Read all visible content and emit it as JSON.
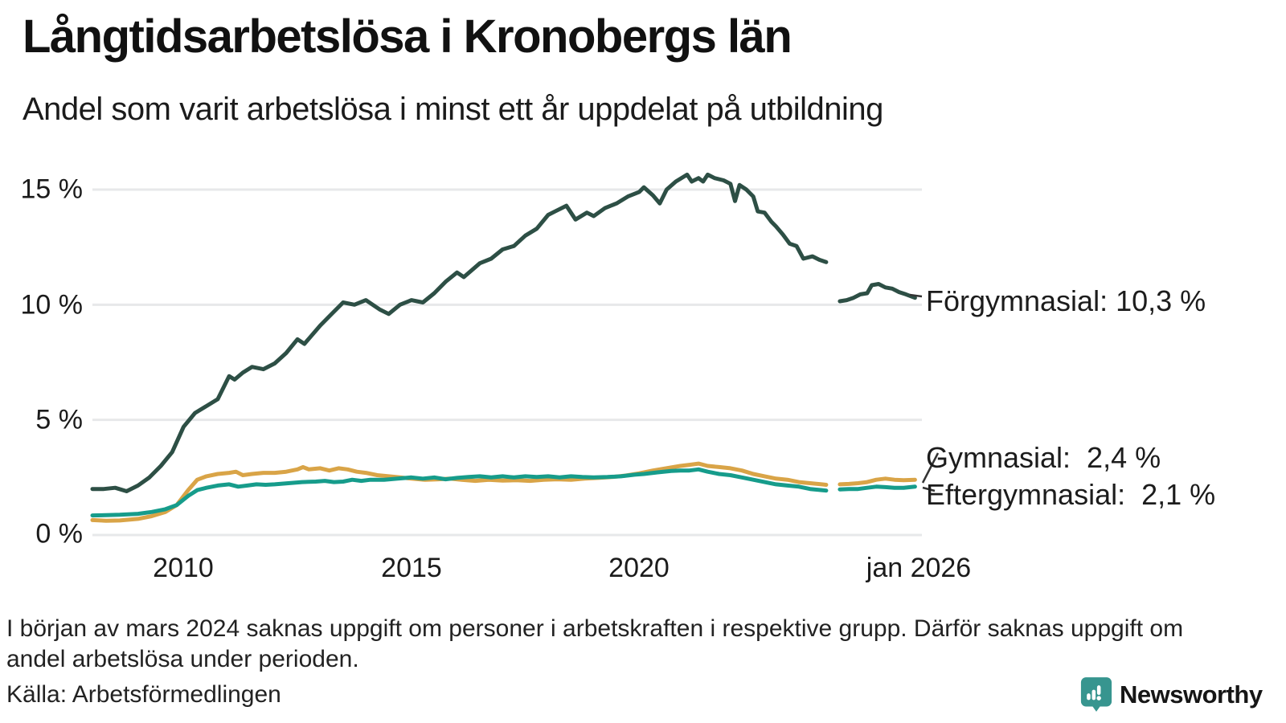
{
  "header": {
    "title": "Långtidsarbetslösa i Kronobergs län",
    "subtitle": "Andel som varit arbetslösa i minst ett år uppdelat på utbildning"
  },
  "chart_data": {
    "type": "line",
    "title": "Långtidsarbetslösa i Kronobergs län",
    "subtitle": "Andel som varit arbetslösa i minst ett år uppdelat på utbildning",
    "unit": "%",
    "xlim": [
      2008,
      2026.2
    ],
    "ylim": [
      0,
      16.2
    ],
    "grid": "horizontal",
    "legend_position": "right-end-labels",
    "colors": {
      "grid": "#e7e8ea",
      "forgymnasial": "#2d4f45",
      "gymnasial": "#d9a447",
      "eftergymnasial": "#169c8b"
    },
    "y_ticks": [
      {
        "v": 0,
        "label": "0 %"
      },
      {
        "v": 5,
        "label": "5 %"
      },
      {
        "v": 10,
        "label": "10 %"
      },
      {
        "v": 15,
        "label": "15 %"
      }
    ],
    "x_ticks": [
      {
        "t": 2010,
        "label": "2010"
      },
      {
        "t": 2015,
        "label": "2015"
      },
      {
        "t": 2020,
        "label": "2020"
      },
      {
        "t": 2026.05,
        "label": "jan 2026"
      }
    ],
    "series": [
      {
        "key": "forgymnasial",
        "name": "Förgymnasial",
        "color": "#2d4f45",
        "end_label": "Förgymnasial: 10,3 %",
        "end_value": "10,3 %",
        "segments": [
          [
            [
              2008,
              2
            ],
            [
              2008.25,
              2
            ],
            [
              2008.5,
              2.05
            ],
            [
              2008.75,
              1.9
            ],
            [
              2009,
              2.15
            ],
            [
              2009.25,
              2.5
            ],
            [
              2009.5,
              3
            ],
            [
              2009.75,
              3.6
            ],
            [
              2010,
              4.7
            ],
            [
              2010.25,
              5.3
            ],
            [
              2010.5,
              5.6
            ],
            [
              2010.75,
              5.9
            ],
            [
              2011,
              6.9
            ],
            [
              2011.12,
              6.75
            ],
            [
              2011.3,
              7.05
            ],
            [
              2011.5,
              7.3
            ],
            [
              2011.75,
              7.2
            ],
            [
              2012,
              7.45
            ],
            [
              2012.25,
              7.9
            ],
            [
              2012.5,
              8.5
            ],
            [
              2012.65,
              8.3
            ],
            [
              2013,
              9.1
            ],
            [
              2013.25,
              9.6
            ],
            [
              2013.5,
              10.1
            ],
            [
              2013.75,
              10
            ],
            [
              2014,
              10.2
            ],
            [
              2014.3,
              9.8
            ],
            [
              2014.5,
              9.6
            ],
            [
              2014.75,
              10
            ],
            [
              2015,
              10.2
            ],
            [
              2015.25,
              10.1
            ],
            [
              2015.5,
              10.5
            ],
            [
              2015.75,
              11
            ],
            [
              2016,
              11.4
            ],
            [
              2016.15,
              11.2
            ],
            [
              2016.5,
              11.8
            ],
            [
              2016.75,
              12
            ],
            [
              2017,
              12.4
            ],
            [
              2017.25,
              12.55
            ],
            [
              2017.5,
              13
            ],
            [
              2017.75,
              13.3
            ],
            [
              2018,
              13.9
            ],
            [
              2018.15,
              14.05
            ],
            [
              2018.4,
              14.3
            ],
            [
              2018.6,
              13.7
            ],
            [
              2018.85,
              14
            ],
            [
              2019,
              13.85
            ],
            [
              2019.25,
              14.2
            ],
            [
              2019.5,
              14.4
            ],
            [
              2019.75,
              14.7
            ],
            [
              2020,
              14.9
            ],
            [
              2020.1,
              15.1
            ],
            [
              2020.3,
              14.75
            ],
            [
              2020.45,
              14.4
            ],
            [
              2020.6,
              15
            ],
            [
              2020.8,
              15.35
            ],
            [
              2021.05,
              15.65
            ],
            [
              2021.15,
              15.35
            ],
            [
              2021.3,
              15.5
            ],
            [
              2021.4,
              15.35
            ],
            [
              2021.5,
              15.65
            ],
            [
              2021.65,
              15.5
            ],
            [
              2021.85,
              15.4
            ],
            [
              2022,
              15.25
            ],
            [
              2022.1,
              14.5
            ],
            [
              2022.2,
              15.2
            ],
            [
              2022.35,
              15
            ],
            [
              2022.5,
              14.7
            ],
            [
              2022.6,
              14.05
            ],
            [
              2022.75,
              14
            ],
            [
              2022.9,
              13.6
            ],
            [
              2023,
              13.4
            ],
            [
              2023.15,
              13.05
            ],
            [
              2023.3,
              12.65
            ],
            [
              2023.45,
              12.55
            ],
            [
              2023.6,
              12
            ],
            [
              2023.8,
              12.1
            ],
            [
              2023.95,
              11.95
            ],
            [
              2024.1,
              11.85
            ]
          ],
          [
            [
              2024.4,
              10.15
            ],
            [
              2024.55,
              10.2
            ],
            [
              2024.7,
              10.3
            ],
            [
              2024.85,
              10.45
            ],
            [
              2025,
              10.5
            ],
            [
              2025.1,
              10.85
            ],
            [
              2025.25,
              10.9
            ],
            [
              2025.4,
              10.75
            ],
            [
              2025.55,
              10.7
            ],
            [
              2025.7,
              10.55
            ],
            [
              2025.85,
              10.45
            ],
            [
              2026.05,
              10.3
            ]
          ]
        ]
      },
      {
        "key": "gymnasial",
        "name": "Gymnasial",
        "color": "#d9a447",
        "end_label": "Gymnasial:  2,4 %",
        "end_value": "2,4 %",
        "segments": [
          [
            [
              2008,
              0.65
            ],
            [
              2008.3,
              0.62
            ],
            [
              2008.6,
              0.63
            ],
            [
              2009,
              0.7
            ],
            [
              2009.3,
              0.82
            ],
            [
              2009.6,
              1
            ],
            [
              2009.85,
              1.3
            ],
            [
              2010.1,
              1.95
            ],
            [
              2010.3,
              2.4
            ],
            [
              2010.5,
              2.55
            ],
            [
              2010.75,
              2.65
            ],
            [
              2011,
              2.7
            ],
            [
              2011.15,
              2.75
            ],
            [
              2011.3,
              2.6
            ],
            [
              2011.5,
              2.65
            ],
            [
              2011.75,
              2.7
            ],
            [
              2012,
              2.7
            ],
            [
              2012.25,
              2.75
            ],
            [
              2012.5,
              2.85
            ],
            [
              2012.62,
              2.95
            ],
            [
              2012.75,
              2.85
            ],
            [
              2013,
              2.9
            ],
            [
              2013.2,
              2.8
            ],
            [
              2013.4,
              2.9
            ],
            [
              2013.6,
              2.85
            ],
            [
              2013.8,
              2.75
            ],
            [
              2014,
              2.7
            ],
            [
              2014.25,
              2.6
            ],
            [
              2014.5,
              2.55
            ],
            [
              2014.75,
              2.5
            ],
            [
              2015,
              2.45
            ],
            [
              2015.3,
              2.4
            ],
            [
              2015.6,
              2.42
            ],
            [
              2015.85,
              2.45
            ],
            [
              2016.1,
              2.4
            ],
            [
              2016.4,
              2.35
            ],
            [
              2016.7,
              2.4
            ],
            [
              2017,
              2.36
            ],
            [
              2017.3,
              2.38
            ],
            [
              2017.6,
              2.35
            ],
            [
              2017.9,
              2.4
            ],
            [
              2018.2,
              2.42
            ],
            [
              2018.5,
              2.4
            ],
            [
              2018.8,
              2.45
            ],
            [
              2019.1,
              2.48
            ],
            [
              2019.4,
              2.52
            ],
            [
              2019.7,
              2.58
            ],
            [
              2020,
              2.68
            ],
            [
              2020.3,
              2.8
            ],
            [
              2020.6,
              2.9
            ],
            [
              2020.9,
              3
            ],
            [
              2021.1,
              3.05
            ],
            [
              2021.3,
              3.1
            ],
            [
              2021.5,
              3
            ],
            [
              2021.75,
              2.95
            ],
            [
              2022,
              2.9
            ],
            [
              2022.25,
              2.8
            ],
            [
              2022.5,
              2.65
            ],
            [
              2022.75,
              2.55
            ],
            [
              2023,
              2.45
            ],
            [
              2023.25,
              2.4
            ],
            [
              2023.5,
              2.3
            ],
            [
              2023.75,
              2.25
            ],
            [
              2024,
              2.2
            ],
            [
              2024.1,
              2.18
            ]
          ],
          [
            [
              2024.4,
              2.2
            ],
            [
              2024.6,
              2.22
            ],
            [
              2024.8,
              2.25
            ],
            [
              2025,
              2.3
            ],
            [
              2025.2,
              2.4
            ],
            [
              2025.4,
              2.45
            ],
            [
              2025.6,
              2.4
            ],
            [
              2025.8,
              2.38
            ],
            [
              2026.05,
              2.4
            ]
          ]
        ]
      },
      {
        "key": "eftergymnasial",
        "name": "Eftergymnasial",
        "color": "#169c8b",
        "end_label": "Eftergymnasial:  2,1 %",
        "end_value": "2,1 %",
        "segments": [
          [
            [
              2008,
              0.85
            ],
            [
              2008.3,
              0.86
            ],
            [
              2008.6,
              0.88
            ],
            [
              2009,
              0.92
            ],
            [
              2009.3,
              1
            ],
            [
              2009.6,
              1.12
            ],
            [
              2009.85,
              1.3
            ],
            [
              2010.1,
              1.7
            ],
            [
              2010.3,
              1.95
            ],
            [
              2010.5,
              2.05
            ],
            [
              2010.75,
              2.15
            ],
            [
              2011,
              2.2
            ],
            [
              2011.2,
              2.1
            ],
            [
              2011.4,
              2.15
            ],
            [
              2011.6,
              2.2
            ],
            [
              2011.8,
              2.18
            ],
            [
              2012,
              2.2
            ],
            [
              2012.3,
              2.25
            ],
            [
              2012.6,
              2.3
            ],
            [
              2012.9,
              2.32
            ],
            [
              2013.1,
              2.35
            ],
            [
              2013.3,
              2.3
            ],
            [
              2013.5,
              2.32
            ],
            [
              2013.7,
              2.4
            ],
            [
              2013.9,
              2.35
            ],
            [
              2014.1,
              2.4
            ],
            [
              2014.4,
              2.4
            ],
            [
              2014.7,
              2.45
            ],
            [
              2015,
              2.5
            ],
            [
              2015.25,
              2.45
            ],
            [
              2015.5,
              2.5
            ],
            [
              2015.75,
              2.42
            ],
            [
              2016,
              2.48
            ],
            [
              2016.25,
              2.52
            ],
            [
              2016.5,
              2.55
            ],
            [
              2016.75,
              2.5
            ],
            [
              2017,
              2.55
            ],
            [
              2017.25,
              2.5
            ],
            [
              2017.5,
              2.55
            ],
            [
              2017.75,
              2.52
            ],
            [
              2018,
              2.55
            ],
            [
              2018.25,
              2.5
            ],
            [
              2018.5,
              2.55
            ],
            [
              2018.75,
              2.52
            ],
            [
              2019,
              2.5
            ],
            [
              2019.3,
              2.52
            ],
            [
              2019.6,
              2.55
            ],
            [
              2019.9,
              2.62
            ],
            [
              2020.1,
              2.65
            ],
            [
              2020.4,
              2.72
            ],
            [
              2020.7,
              2.78
            ],
            [
              2020.9,
              2.8
            ],
            [
              2021.1,
              2.8
            ],
            [
              2021.3,
              2.85
            ],
            [
              2021.5,
              2.75
            ],
            [
              2021.75,
              2.65
            ],
            [
              2022,
              2.6
            ],
            [
              2022.25,
              2.5
            ],
            [
              2022.5,
              2.4
            ],
            [
              2022.75,
              2.3
            ],
            [
              2023,
              2.2
            ],
            [
              2023.25,
              2.15
            ],
            [
              2023.5,
              2.1
            ],
            [
              2023.75,
              2
            ],
            [
              2024,
              1.95
            ],
            [
              2024.1,
              1.93
            ]
          ],
          [
            [
              2024.4,
              1.98
            ],
            [
              2024.6,
              2
            ],
            [
              2024.8,
              2
            ],
            [
              2025,
              2.05
            ],
            [
              2025.2,
              2.1
            ],
            [
              2025.4,
              2.08
            ],
            [
              2025.6,
              2.05
            ],
            [
              2025.8,
              2.05
            ],
            [
              2026.05,
              2.1
            ]
          ]
        ]
      }
    ]
  },
  "footnote": "I början av mars 2024 saknas uppgift om personer i arbetskraften i respektive grupp. Därför saknas uppgift om andel arbetslösa under perioden.",
  "source": "Källa: Arbetsförmedlingen",
  "branding": {
    "name": "Newsworthy",
    "color": "#37958f"
  }
}
